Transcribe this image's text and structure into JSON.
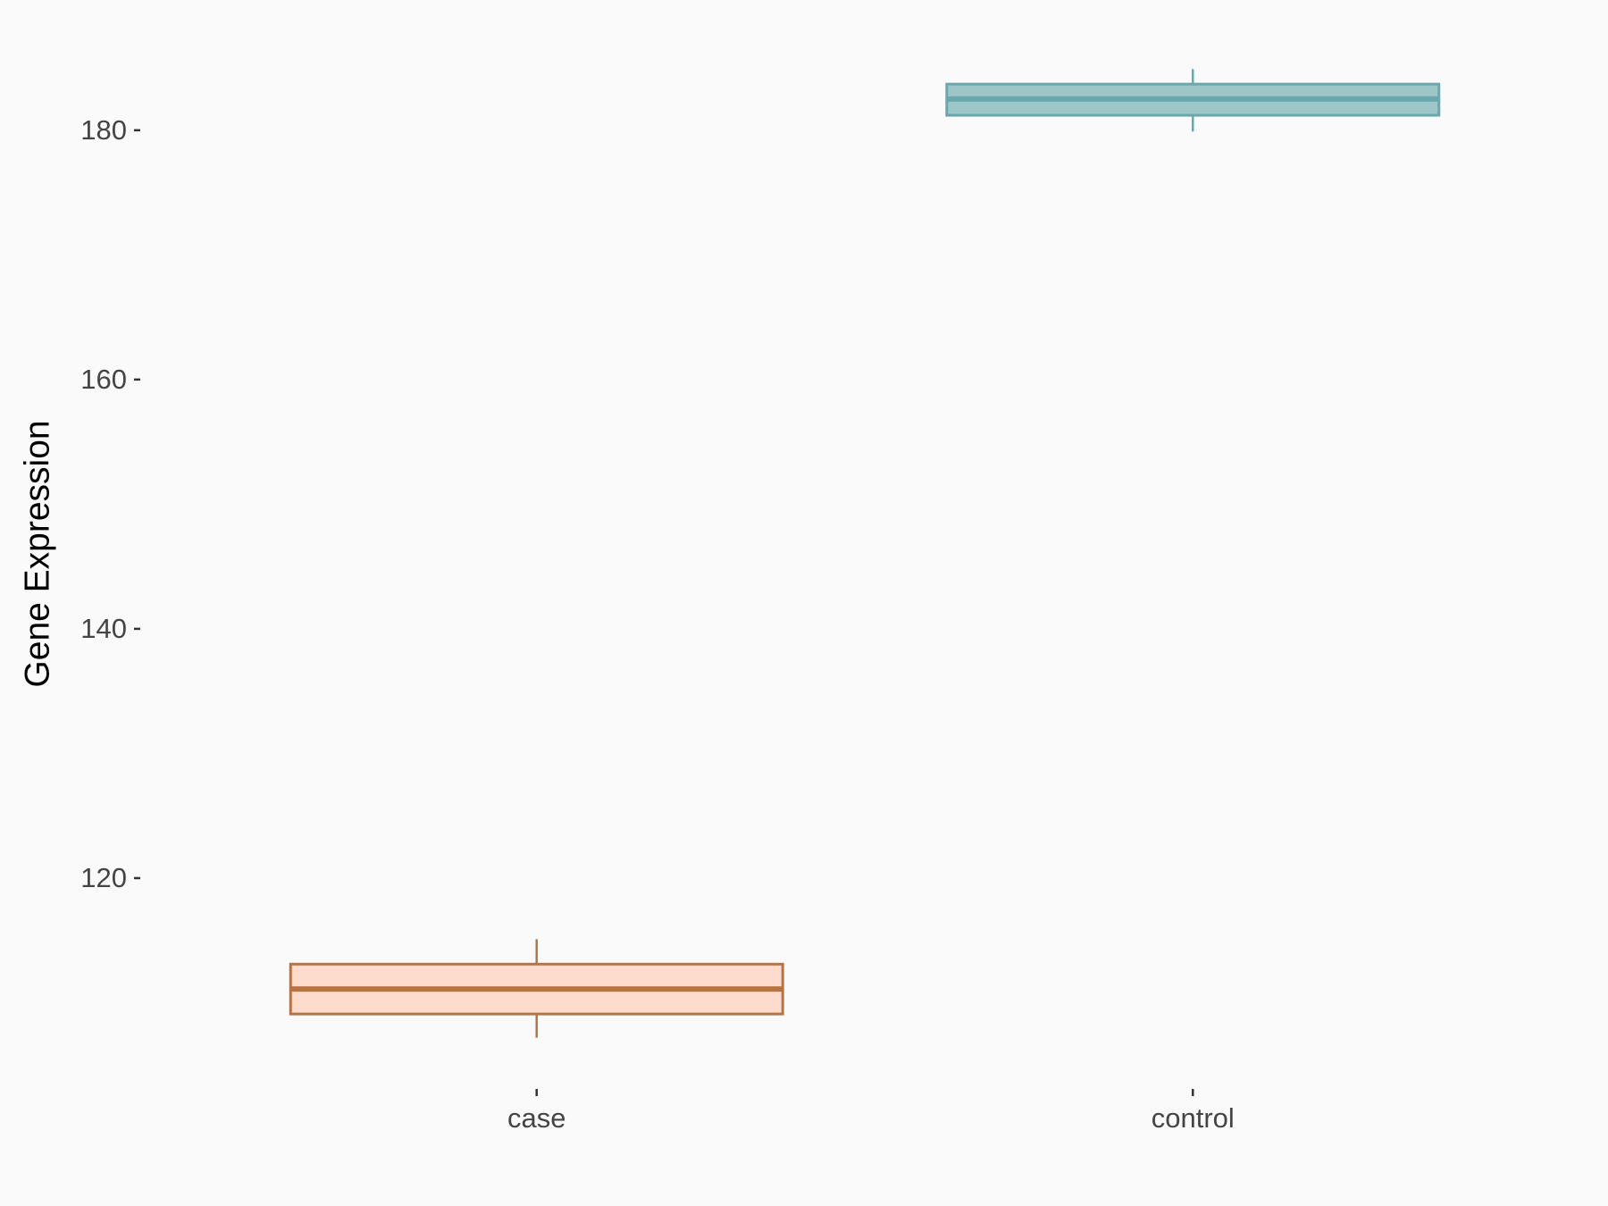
{
  "chart_data": {
    "type": "box",
    "y_label": "Gene Expression",
    "categories": [
      "case",
      "control"
    ],
    "min": [
      107.2,
      179.9
    ],
    "q1": [
      109.1,
      181.2
    ],
    "median": [
      111.1,
      182.5
    ],
    "q3": [
      113.1,
      183.7
    ],
    "max": [
      115.1,
      184.9
    ],
    "colors": [
      "#b87342",
      "#6ba8ae"
    ],
    "fills": [
      "#fddccd",
      "#9dc6c9"
    ],
    "ylim": [
      103.3,
      188.8
    ],
    "yticks": [
      120,
      140,
      160,
      180
    ],
    "grid": false
  }
}
